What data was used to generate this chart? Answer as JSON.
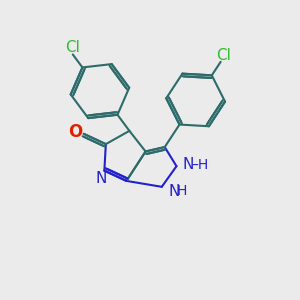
{
  "bg_color": "#ebebeb",
  "bond_color": "#2d6b6b",
  "n_color": "#2222cc",
  "o_color": "#dd2200",
  "cl_color": "#33bb33",
  "lw": 1.5,
  "fs": 11,
  "xlim": [
    0,
    10
  ],
  "ylim": [
    0,
    10
  ]
}
